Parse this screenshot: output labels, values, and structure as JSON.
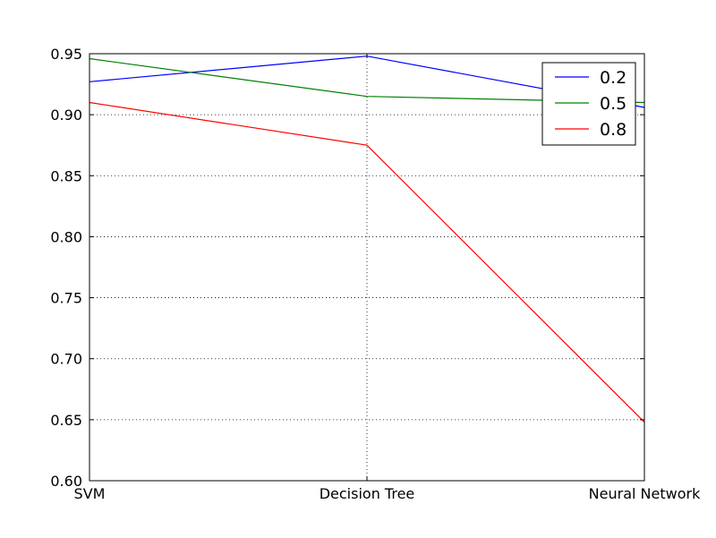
{
  "chart_data": {
    "type": "line",
    "title": "",
    "xlabel": "",
    "ylabel": "",
    "categories": [
      "SVM",
      "Decision Tree",
      "Neural Network"
    ],
    "ylim": [
      0.6,
      0.95
    ],
    "yticks": [
      "0.60",
      "0.65",
      "0.70",
      "0.75",
      "0.80",
      "0.85",
      "0.90",
      "0.95"
    ],
    "ytick_values": [
      0.6,
      0.65,
      0.7,
      0.75,
      0.8,
      0.85,
      0.9,
      0.95
    ],
    "grid": true,
    "legend_position": "top-right",
    "series": [
      {
        "name": "0.2",
        "color": "#0000ff",
        "values": [
          0.927,
          0.948,
          0.906
        ]
      },
      {
        "name": "0.5",
        "color": "#008000",
        "values": [
          0.946,
          0.915,
          0.91
        ]
      },
      {
        "name": "0.8",
        "color": "#ff0000",
        "values": [
          0.91,
          0.875,
          0.648
        ]
      }
    ]
  }
}
